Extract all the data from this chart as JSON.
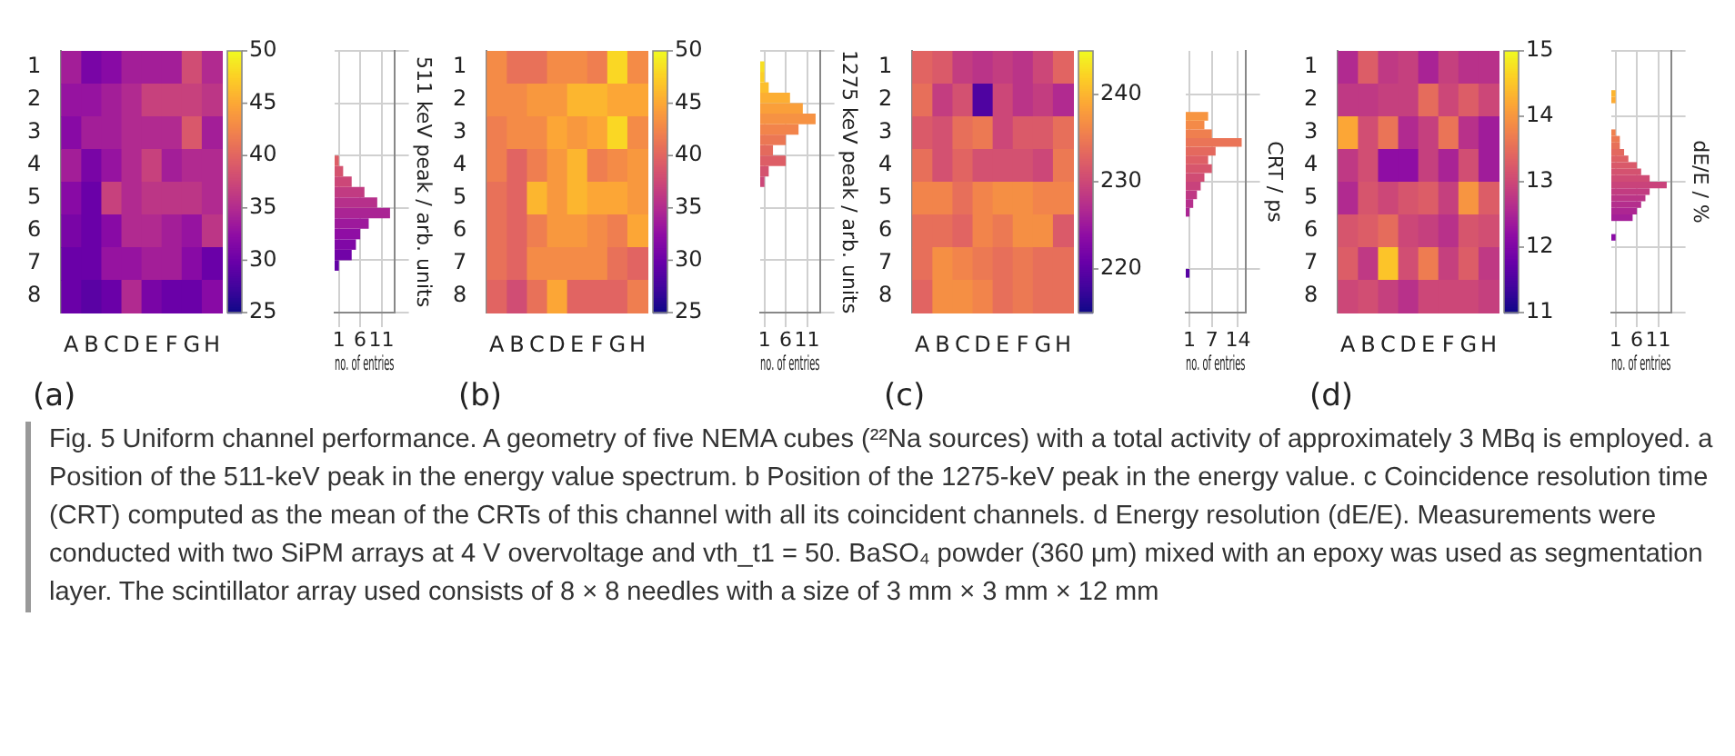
{
  "chart_data": [
    {
      "type": "heatmap",
      "categories": [
        "A",
        "B",
        "C",
        "D",
        "E",
        "F",
        "G",
        "H"
      ],
      "y_categories": [
        "1",
        "2",
        "3",
        "4",
        "5",
        "6",
        "7",
        "8"
      ],
      "clim": [
        25,
        50
      ],
      "cticks": [
        25,
        30,
        35,
        40,
        45,
        50
      ],
      "annotations": [
        "(a)"
      ],
      "cells": [
        [
          34,
          31,
          32,
          34,
          34,
          34,
          38,
          35
        ],
        [
          33,
          33,
          34,
          35,
          37,
          37,
          37,
          36
        ],
        [
          32,
          34,
          34,
          35,
          35,
          35,
          39,
          34
        ],
        [
          34,
          31,
          33,
          35,
          37,
          34,
          35,
          35
        ],
        [
          32,
          30,
          37,
          35,
          36,
          36,
          36,
          35
        ],
        [
          31,
          30,
          32,
          35,
          35,
          34,
          33,
          36
        ],
        [
          30,
          30,
          33,
          33,
          34,
          34,
          32,
          30
        ],
        [
          30,
          29,
          30,
          35,
          31,
          30,
          30,
          32
        ]
      ]
    },
    {
      "type": "histogram",
      "orientation": "horizontal",
      "bins": [
        29,
        30,
        31,
        32,
        33,
        34,
        35,
        36,
        37,
        38,
        39,
        40
      ],
      "values": [
        1,
        4,
        5,
        6,
        8,
        13,
        10,
        7,
        4,
        2,
        1
      ],
      "xlim": [
        0,
        14
      ],
      "xticks": [
        1,
        6,
        11
      ],
      "ylim": [
        25,
        50
      ],
      "yticks": [
        25,
        30,
        35,
        40,
        45,
        50
      ],
      "xlabel": "no. of entries",
      "ylabel": "511 keV peak / arb. units",
      "grid": true,
      "tick_labels": "x"
    },
    {
      "type": "heatmap",
      "categories": [
        "A",
        "B",
        "C",
        "D",
        "E",
        "F",
        "G",
        "H"
      ],
      "y_categories": [
        "1",
        "2",
        "3",
        "4",
        "5",
        "6",
        "7",
        "8"
      ],
      "clim": [
        25,
        50
      ],
      "cticks": [
        25,
        30,
        35,
        40,
        45,
        50
      ],
      "annotations": [
        "(b)"
      ],
      "cells": [
        [
          43,
          41,
          41,
          43,
          43,
          42,
          48,
          43
        ],
        [
          43,
          43,
          44,
          44,
          46,
          46,
          45,
          45
        ],
        [
          42,
          43,
          43,
          45,
          44,
          45,
          48,
          43
        ],
        [
          42,
          40,
          42,
          44,
          46,
          42,
          43,
          44
        ],
        [
          41,
          40,
          46,
          44,
          46,
          45,
          45,
          44
        ],
        [
          41,
          40,
          42,
          44,
          44,
          43,
          42,
          45
        ],
        [
          41,
          40,
          43,
          43,
          43,
          43,
          41,
          40
        ],
        [
          40,
          38,
          41,
          45,
          40,
          40,
          40,
          42
        ]
      ]
    },
    {
      "type": "histogram",
      "orientation": "horizontal",
      "bins": [
        37,
        38,
        39,
        40,
        41,
        42,
        43,
        44,
        45,
        46,
        47,
        48,
        49
      ],
      "values": [
        1,
        2,
        6,
        3,
        6,
        9,
        13,
        10,
        7,
        2,
        1,
        1
      ],
      "xlim": [
        0,
        14
      ],
      "xticks": [
        1,
        6,
        11
      ],
      "ylim": [
        25,
        50
      ],
      "yticks": [
        25,
        30,
        35,
        40,
        45,
        50
      ],
      "xlabel": "no. of entries",
      "ylabel": "1275 keV peak / arb. units",
      "grid": true,
      "tick_labels": "x"
    },
    {
      "type": "heatmap",
      "categories": [
        "A",
        "B",
        "C",
        "D",
        "E",
        "F",
        "G",
        "H"
      ],
      "y_categories": [
        "1",
        "2",
        "3",
        "4",
        "5",
        "6",
        "7",
        "8"
      ],
      "clim": [
        215,
        245
      ],
      "cticks": [
        220,
        230,
        240
      ],
      "annotations": [
        "(c)"
      ],
      "cells": [
        [
          233,
          232,
          229,
          228,
          229,
          228,
          230,
          233
        ],
        [
          234,
          229,
          231,
          219,
          230,
          228,
          229,
          227
        ],
        [
          232,
          231,
          234,
          235,
          230,
          232,
          232,
          234
        ],
        [
          234,
          231,
          233,
          231,
          231,
          231,
          230,
          235
        ],
        [
          236,
          236,
          234,
          236,
          237,
          237,
          236,
          236
        ],
        [
          234,
          234,
          233,
          236,
          235,
          237,
          237,
          232
        ],
        [
          234,
          237,
          236,
          235,
          234,
          235,
          234,
          234
        ],
        [
          233,
          237,
          237,
          236,
          234,
          235,
          234,
          234
        ]
      ]
    },
    {
      "type": "histogram",
      "orientation": "horizontal",
      "bins": [
        219,
        220,
        221,
        222,
        223,
        224,
        225,
        226,
        227,
        228,
        229,
        230,
        231,
        232,
        233,
        234,
        235,
        236,
        237,
        238
      ],
      "values": [
        1,
        0,
        0,
        0,
        0,
        0,
        0,
        1,
        2,
        3,
        4,
        5,
        7,
        6,
        8,
        15,
        7,
        5,
        6
      ],
      "xlim": [
        0,
        16
      ],
      "xticks": [
        1,
        7,
        14
      ],
      "ylim": [
        215,
        245
      ],
      "yticks": [
        220,
        230,
        240
      ],
      "xlabel": "no. of entries",
      "ylabel": "CRT / ps",
      "grid": true,
      "tick_labels": "x"
    },
    {
      "type": "heatmap",
      "categories": [
        "A",
        "B",
        "C",
        "D",
        "E",
        "F",
        "G",
        "H"
      ],
      "y_categories": [
        "1",
        "2",
        "3",
        "4",
        "5",
        "6",
        "7",
        "8"
      ],
      "clim": [
        11,
        15
      ],
      "cticks": [
        11,
        12,
        13,
        14,
        15
      ],
      "annotations": [
        "(d)"
      ],
      "cells": [
        [
          12.6,
          13.3,
          12.8,
          12.9,
          12.5,
          12.9,
          12.7,
          12.7
        ],
        [
          12.8,
          12.8,
          12.9,
          12.9,
          13.5,
          13.0,
          13.3,
          13.0
        ],
        [
          14.2,
          13.1,
          13.6,
          12.6,
          12.9,
          13.6,
          12.7,
          12.4
        ],
        [
          12.8,
          13.1,
          12.2,
          12.2,
          12.9,
          12.5,
          13.1,
          12.4
        ],
        [
          12.6,
          13.2,
          13.0,
          13.2,
          13.3,
          12.9,
          14.0,
          13.3
        ],
        [
          13.2,
          13.3,
          13.5,
          13.0,
          12.9,
          12.7,
          13.2,
          13.1
        ],
        [
          13.3,
          12.8,
          14.5,
          13.1,
          13.7,
          12.9,
          13.3,
          12.8
        ],
        [
          13.0,
          13.1,
          12.9,
          12.7,
          13.0,
          13.0,
          13.0,
          12.9
        ]
      ]
    },
    {
      "type": "histogram",
      "orientation": "horizontal",
      "bins": [
        12.1,
        12.2,
        12.3,
        12.4,
        12.5,
        12.6,
        12.7,
        12.8,
        12.9,
        13.0,
        13.1,
        13.2,
        13.3,
        13.4,
        13.5,
        13.6,
        13.7,
        13.8,
        13.9,
        14.0,
        14.1,
        14.2,
        14.3,
        14.4
      ],
      "values": [
        1,
        0,
        0,
        5,
        6,
        7,
        8,
        9,
        13,
        9,
        7,
        6,
        4,
        3,
        2,
        2,
        1,
        0,
        0,
        0,
        0,
        1,
        1
      ],
      "xlim": [
        0,
        14
      ],
      "xticks": [
        1,
        6,
        11
      ],
      "ylim": [
        11,
        15
      ],
      "yticks": [
        11,
        12,
        13,
        14,
        15
      ],
      "xlabel": "no. of entries",
      "ylabel": "dE/E / %",
      "grid": true,
      "tick_labels": "x"
    },
    {
      "type": "other",
      "annotations": [
        "Fig. 5 Uniform channel performance. A geometry of five NEMA cubes (²²Na sources) with a total activity of approximately 3 MBq is employed. a Position of the 511-keV peak in the energy value spectrum. b Position of the 1275-keV peak in the energy value. c Coincidence resolution time (CRT) computed as the mean of the CRTs of this channel with all its coincident channels. d Energy resolution (dE/E). Measurements were conducted with two SiPM arrays at 4 V overvoltage and vth_t1 = 50. BaSO₄ powder (360 μm) mixed with an epoxy was used as segmentation layer. The scintillator array used consists of 8 × 8 needles with a size of 3 mm × 3 mm × 12 mm"
      ]
    }
  ]
}
